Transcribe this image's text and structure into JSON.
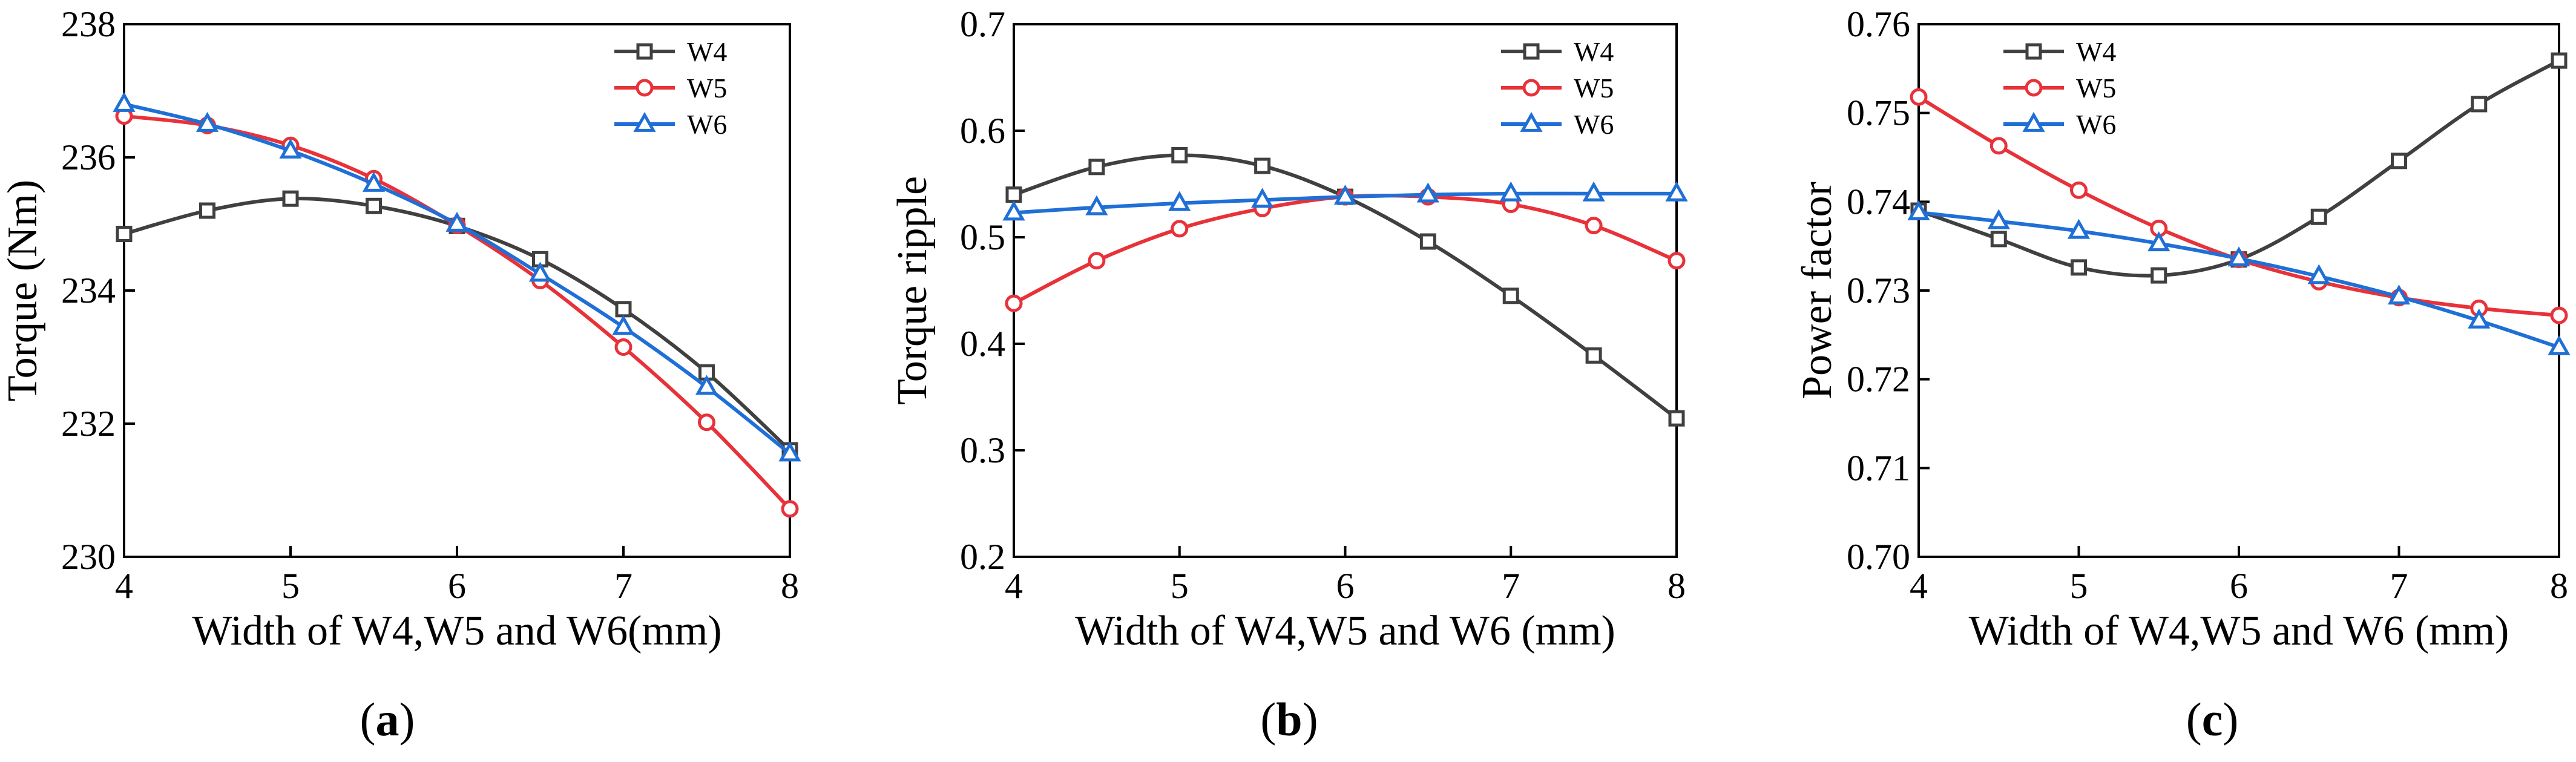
{
  "chart_data": [
    {
      "type": "line",
      "panel_label": "(a)",
      "xlabel": "Width of W4,W5 and W6(mm)",
      "ylabel": "Torque (Nm)",
      "x": [
        4,
        4.5,
        5,
        5.5,
        6,
        6.5,
        7,
        7.5,
        8
      ],
      "xlim": [
        4,
        8
      ],
      "ylim": [
        230,
        238
      ],
      "xticks": [
        4,
        5,
        6,
        7,
        8
      ],
      "yticks": [
        230,
        232,
        234,
        236,
        238
      ],
      "legend_position": "top-right",
      "series": [
        {
          "name": "W4",
          "color": "#404040",
          "marker": "square",
          "values": [
            234.85,
            235.2,
            235.38,
            235.27,
            234.97,
            234.47,
            233.72,
            232.77,
            231.6
          ]
        },
        {
          "name": "W5",
          "color": "#e8323a",
          "marker": "circle",
          "values": [
            236.62,
            236.48,
            236.18,
            235.68,
            234.98,
            234.15,
            233.15,
            232.02,
            230.72
          ]
        },
        {
          "name": "W6",
          "color": "#1f6fd6",
          "marker": "triangle",
          "values": [
            236.8,
            236.5,
            236.1,
            235.6,
            235.0,
            234.25,
            233.45,
            232.55,
            231.55
          ]
        }
      ]
    },
    {
      "type": "line",
      "panel_label": "(b)",
      "xlabel": "Width of W4,W5 and W6 (mm)",
      "ylabel": "Torque ripple",
      "x": [
        4,
        4.5,
        5,
        5.5,
        6,
        6.5,
        7,
        7.5,
        8
      ],
      "xlim": [
        4,
        8
      ],
      "ylim": [
        0.2,
        0.7
      ],
      "xticks": [
        4,
        5,
        6,
        7,
        8
      ],
      "yticks": [
        0.2,
        0.3,
        0.4,
        0.5,
        0.6,
        0.7
      ],
      "legend_position": "top-right",
      "series": [
        {
          "name": "W4",
          "color": "#404040",
          "marker": "square",
          "values": [
            0.54,
            0.566,
            0.577,
            0.567,
            0.538,
            0.496,
            0.445,
            0.389,
            0.33
          ]
        },
        {
          "name": "W5",
          "color": "#e8323a",
          "marker": "circle",
          "values": [
            0.438,
            0.478,
            0.508,
            0.527,
            0.538,
            0.538,
            0.531,
            0.511,
            0.478
          ]
        },
        {
          "name": "W6",
          "color": "#1f6fd6",
          "marker": "triangle",
          "values": [
            0.523,
            0.528,
            0.532,
            0.535,
            0.538,
            0.54,
            0.541,
            0.541,
            0.541
          ]
        }
      ]
    },
    {
      "type": "line",
      "panel_label": "(c)",
      "xlabel": "Width of W4,W5 and W6 (mm)",
      "ylabel": "Power factor",
      "x": [
        4,
        4.5,
        5,
        5.5,
        6,
        6.5,
        7,
        7.5,
        8
      ],
      "xlim": [
        4,
        8
      ],
      "ylim": [
        0.7,
        0.76
      ],
      "xticks": [
        4,
        5,
        6,
        7,
        8
      ],
      "yticks": [
        0.7,
        0.71,
        0.72,
        0.73,
        0.74,
        0.75,
        0.76
      ],
      "legend_position": "top-left",
      "series": [
        {
          "name": "W4",
          "color": "#404040",
          "marker": "square",
          "values": [
            0.739,
            0.7358,
            0.7326,
            0.7317,
            0.7335,
            0.7383,
            0.7446,
            0.751,
            0.7559
          ]
        },
        {
          "name": "W5",
          "color": "#e8323a",
          "marker": "circle",
          "values": [
            0.7518,
            0.7463,
            0.7413,
            0.737,
            0.7335,
            0.731,
            0.7292,
            0.728,
            0.7272
          ]
        },
        {
          "name": "W6",
          "color": "#1f6fd6",
          "marker": "triangle",
          "values": [
            0.7388,
            0.7378,
            0.7367,
            0.7353,
            0.7336,
            0.7316,
            0.7293,
            0.7266,
            0.7236
          ]
        }
      ]
    }
  ]
}
